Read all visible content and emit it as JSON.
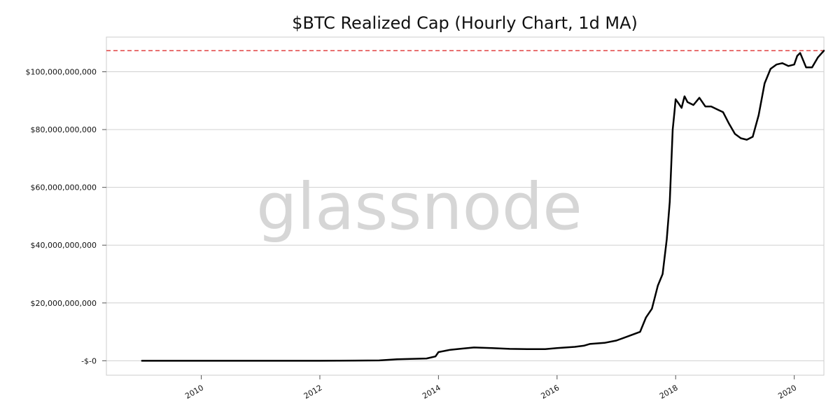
{
  "chart_data": {
    "type": "line",
    "title": "$BTC Realized Cap (Hourly Chart, 1d MA)",
    "xlabel": "",
    "ylabel": "",
    "watermark": "glassnode",
    "xlim": [
      2008.4,
      2020.5
    ],
    "ylim": [
      -5000000000,
      112000000000
    ],
    "x_ticks": [
      2010,
      2012,
      2014,
      2016,
      2018,
      2020
    ],
    "x_tick_labels": [
      "2010",
      "2012",
      "2014",
      "2016",
      "2018",
      "2020"
    ],
    "y_ticks": [
      0,
      20000000000,
      40000000000,
      60000000000,
      80000000000,
      100000000000
    ],
    "y_tick_labels": [
      "-$-0",
      "$20,000,000,000",
      "$40,000,000,000",
      "$60,000,000,000",
      "$80,000,000,000",
      "$100,000,000,000"
    ],
    "grid": "horizontal",
    "reference_line": {
      "y": 107300000000,
      "color": "#e04040",
      "style": "dashed"
    },
    "series": [
      {
        "color": "#000000",
        "x": [
          2009.0,
          2010.0,
          2011.0,
          2012.0,
          2013.0,
          2013.3,
          2013.8,
          2013.95,
          2014.0,
          2014.2,
          2014.4,
          2014.6,
          2014.9,
          2015.2,
          2015.5,
          2015.8,
          2016.0,
          2016.3,
          2016.45,
          2016.55,
          2016.8,
          2017.0,
          2017.2,
          2017.4,
          2017.5,
          2017.6,
          2017.7,
          2017.78,
          2017.85,
          2017.9,
          2017.95,
          2017.98,
          2018.0,
          2018.05,
          2018.1,
          2018.15,
          2018.2,
          2018.3,
          2018.4,
          2018.5,
          2018.6,
          2018.7,
          2018.8,
          2018.9,
          2019.0,
          2019.1,
          2019.2,
          2019.3,
          2019.4,
          2019.5,
          2019.6,
          2019.7,
          2019.8,
          2019.9,
          2020.0,
          2020.05,
          2020.1,
          2020.2,
          2020.3,
          2020.4,
          2020.5
        ],
        "y": [
          0,
          0,
          0,
          0,
          100000000,
          500000000,
          800000000,
          1500000000,
          3000000000,
          3800000000,
          4200000000,
          4600000000,
          4400000000,
          4100000000,
          4000000000,
          4000000000,
          4400000000,
          4800000000,
          5200000000,
          5800000000,
          6200000000,
          7000000000,
          8500000000,
          10000000000,
          15000000000,
          18000000000,
          26000000000,
          30000000000,
          42000000000,
          55000000000,
          80000000000,
          86000000000,
          90500000000,
          89000000000,
          87500000000,
          91500000000,
          89500000000,
          88500000000,
          91000000000,
          88000000000,
          88000000000,
          87000000000,
          86000000000,
          82000000000,
          78500000000,
          77000000000,
          76500000000,
          77500000000,
          85000000000,
          96000000000,
          101000000000,
          102500000000,
          103000000000,
          102000000000,
          102500000000,
          105500000000,
          106500000000,
          101500000000,
          101500000000,
          105000000000,
          107300000000
        ]
      }
    ]
  }
}
